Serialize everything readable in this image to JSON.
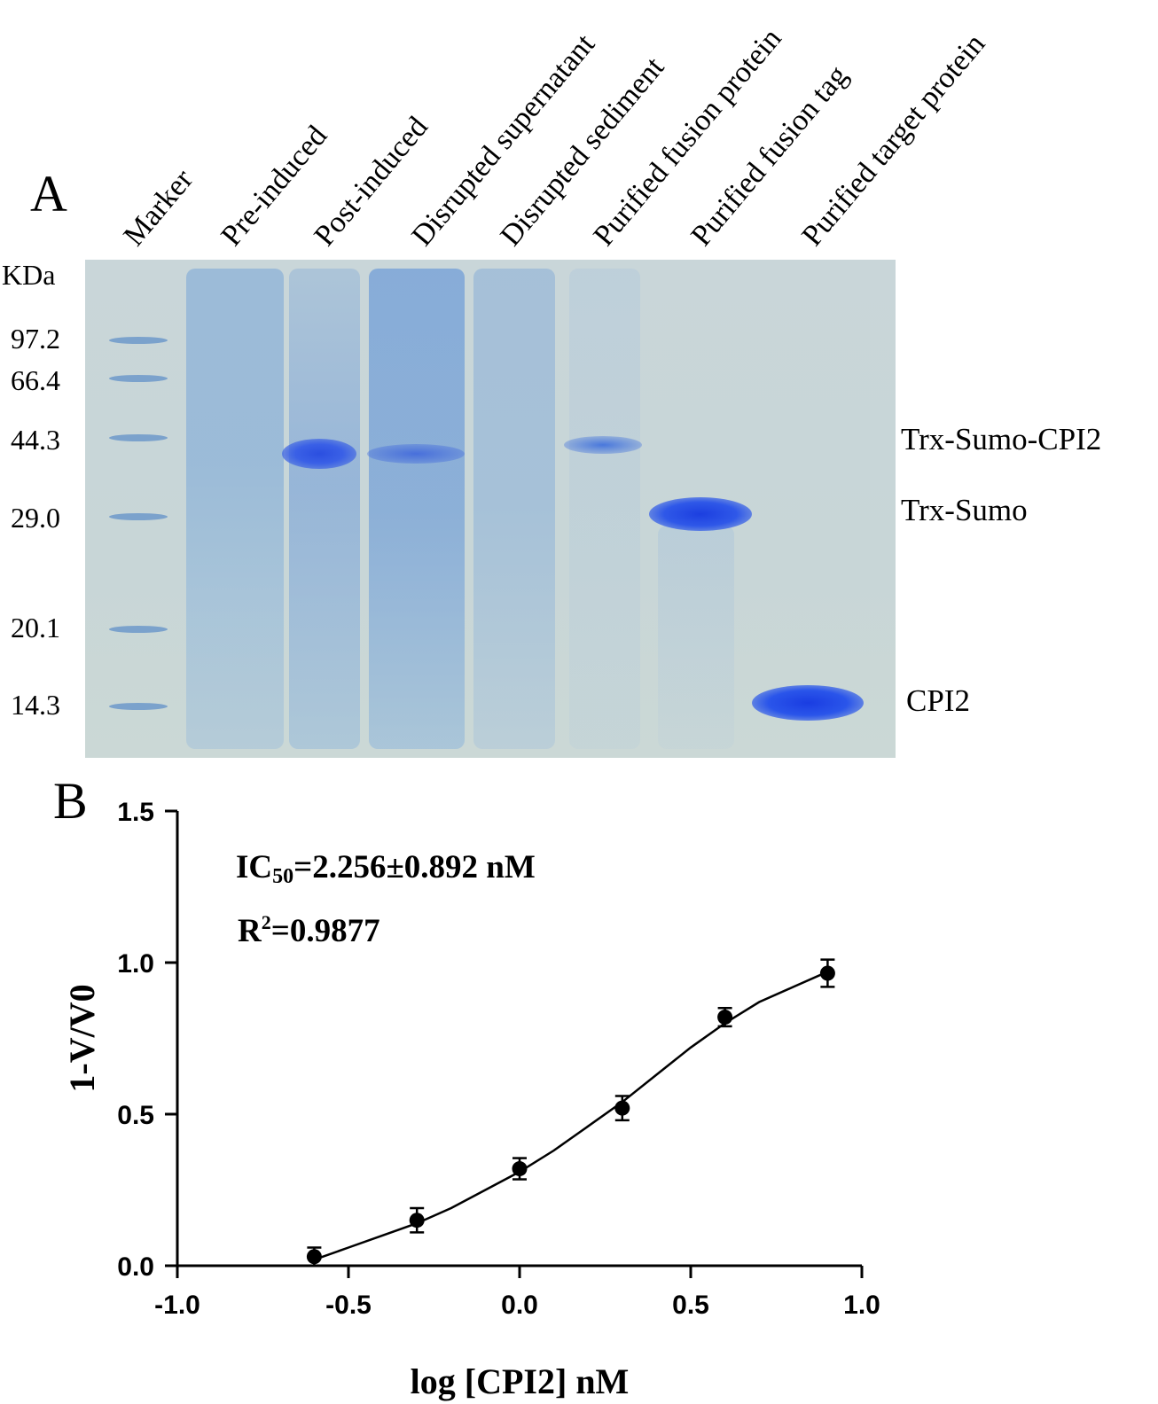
{
  "panel_a": {
    "letter": "A",
    "unit_label": "KDa",
    "lanes": [
      "Marker",
      "Pre-induced",
      "Post-induced",
      "Disrupted supernatant",
      "Disrupted sediment",
      "Purified fusion protein",
      "Purified fusion tag",
      "Purified target protein"
    ],
    "markers": [
      "97.2",
      "66.4",
      "44.3",
      "29.0",
      "20.1",
      "14.3"
    ],
    "bands": [
      "Trx-Sumo-CPI2",
      "Trx-Sumo",
      "CPI2"
    ]
  },
  "panel_b": {
    "letter": "B",
    "ic50_prefix": "IC",
    "ic50_sub": "50",
    "ic50_value": "=2.256±0.892 nM",
    "r2_prefix": "R",
    "r2_sup": "2",
    "r2_value": "=0.9877"
  },
  "chart_data": {
    "type": "scatter",
    "xlabel": "log [CPI2] nM",
    "ylabel": "1-V/V0",
    "xlim": [
      -1.0,
      1.0
    ],
    "ylim": [
      0.0,
      1.5
    ],
    "x_ticks": [
      "-1.0",
      "-0.5",
      "0.0",
      "0.5",
      "1.0"
    ],
    "y_ticks": [
      "0.0",
      "0.5",
      "1.0",
      "1.5"
    ],
    "points": [
      {
        "x": -0.6,
        "y": 0.03,
        "err": 0.03
      },
      {
        "x": -0.3,
        "y": 0.15,
        "err": 0.04
      },
      {
        "x": 0.0,
        "y": 0.32,
        "err": 0.035
      },
      {
        "x": 0.3,
        "y": 0.52,
        "err": 0.04
      },
      {
        "x": 0.6,
        "y": 0.82,
        "err": 0.03
      },
      {
        "x": 0.9,
        "y": 0.965,
        "err": 0.045
      }
    ],
    "fit_curve": {
      "x": [
        -0.6,
        -0.5,
        -0.4,
        -0.3,
        -0.2,
        -0.1,
        0.0,
        0.1,
        0.2,
        0.3,
        0.4,
        0.5,
        0.6,
        0.7,
        0.8,
        0.9
      ],
      "y": [
        0.02,
        0.06,
        0.1,
        0.14,
        0.19,
        0.25,
        0.31,
        0.38,
        0.46,
        0.54,
        0.63,
        0.72,
        0.8,
        0.87,
        0.92,
        0.97
      ]
    },
    "grid": false,
    "legend": "none"
  }
}
